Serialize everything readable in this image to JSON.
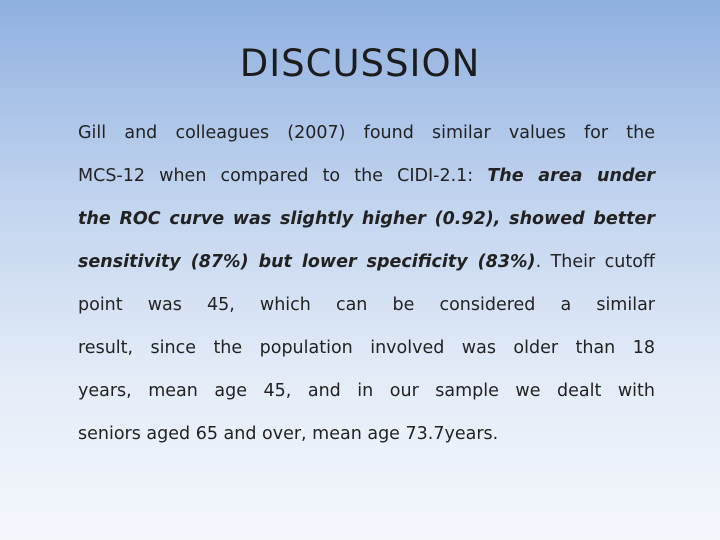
{
  "title": "DISCUSSION",
  "body": {
    "lines": [
      [
        {
          "text": "Gill and colleagues (2007) found similar values for the"
        }
      ],
      [
        {
          "text": "MCS-12 when compared to   the CIDI-2.1: "
        },
        {
          "text": "The area under",
          "bold_italic": true
        }
      ],
      [
        {
          "text": "the ROC curve was slightly higher (0.92), showed better",
          "bold_italic": true
        }
      ],
      [
        {
          "text": "sensitivity (87%) but lower specificity (83%)",
          "bold_italic": true
        },
        {
          "text": ". Their  cutoff"
        }
      ],
      [
        {
          "text": "point   was   45, which can be considered a similar"
        }
      ],
      [
        {
          "text": "result, since the population involved was older than 18"
        }
      ],
      [
        {
          "text": "years, mean age 45, and in our sample we dealt with"
        }
      ],
      [
        {
          "text": "seniors  aged 65 and over, mean age 73.7years."
        }
      ]
    ]
  }
}
